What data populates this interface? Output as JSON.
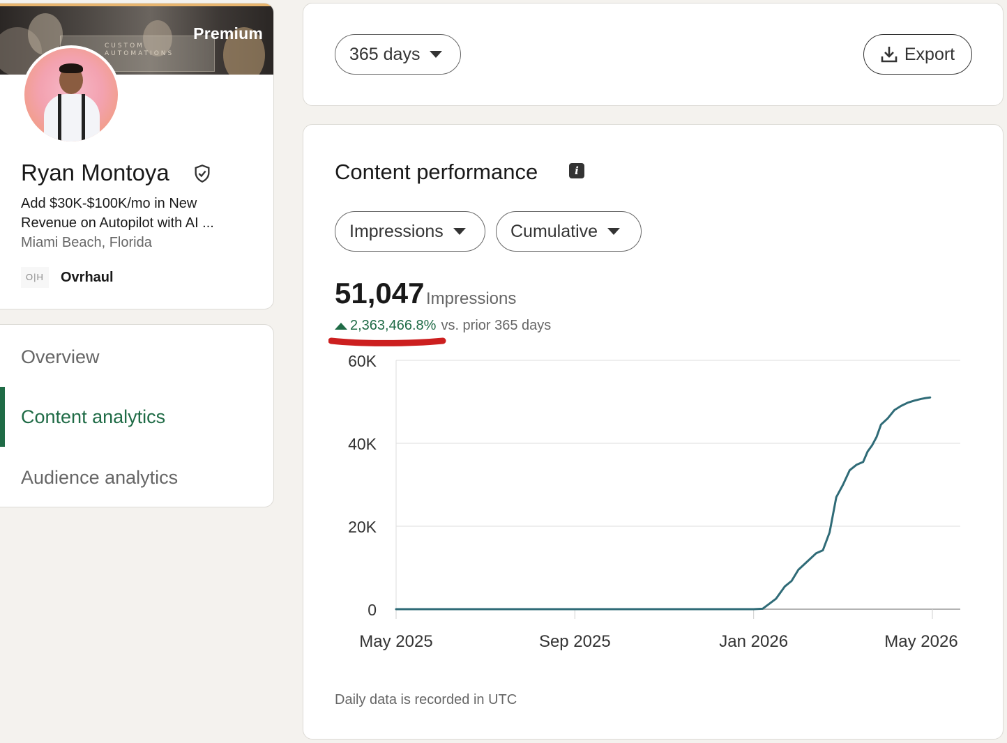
{
  "profile": {
    "banner_badge": "Premium",
    "banner_sign": "CUSTOM\nAUTOMATIONS",
    "name": "Ryan Montoya",
    "headline": "Add $30K-$100K/mo in New Revenue on Autopilot with AI ...",
    "location": "Miami Beach, Florida",
    "company_logo_text": "O|H",
    "company": "Ovrhaul"
  },
  "nav": {
    "items": [
      {
        "label": "Overview",
        "active": false
      },
      {
        "label": "Content analytics",
        "active": true
      },
      {
        "label": "Audience analytics",
        "active": false
      }
    ]
  },
  "controls": {
    "period": "365 days",
    "export_label": "Export"
  },
  "performance": {
    "title": "Content performance",
    "metric_dropdown": "Impressions",
    "mode_dropdown": "Cumulative",
    "total": "51,047",
    "total_label": "Impressions",
    "change_pct": "2,363,466.8%",
    "change_text": "vs. prior 365 days",
    "footnote": "Daily data is recorded in UTC"
  },
  "colors": {
    "accent_green": "#1f6b46",
    "line_teal": "#2f6b77",
    "annotation_red": "#cc1f1f"
  },
  "chart_data": {
    "type": "line",
    "title": "",
    "xlabel": "",
    "ylabel": "",
    "ylim": [
      0,
      60000
    ],
    "yticks": [
      0,
      20000,
      40000,
      60000
    ],
    "ytick_labels": [
      "0",
      "20K",
      "40K",
      "60K"
    ],
    "xtick_labels": [
      "May 2025",
      "Sep 2025",
      "Jan 2026",
      "May 2026"
    ],
    "grid": true,
    "series": [
      {
        "values_x_months": [
          0,
          4,
          8,
          8.2,
          8.35,
          8.5,
          8.7,
          8.85,
          9.0,
          9.2,
          9.4,
          9.55,
          9.7,
          9.85,
          10.0,
          10.15,
          10.3,
          10.45,
          10.55,
          10.65,
          10.75,
          10.85,
          11.0,
          11.15,
          11.3,
          11.45,
          11.6,
          11.75,
          11.85,
          11.95
        ],
        "values": [
          0,
          0,
          0,
          100,
          1300,
          2500,
          5500,
          6800,
          9500,
          11500,
          13500,
          14200,
          18500,
          27000,
          30000,
          33500,
          34800,
          35500,
          38000,
          39500,
          41500,
          44500,
          46000,
          48000,
          49000,
          49800,
          50300,
          50700,
          50900,
          51047
        ]
      }
    ]
  }
}
